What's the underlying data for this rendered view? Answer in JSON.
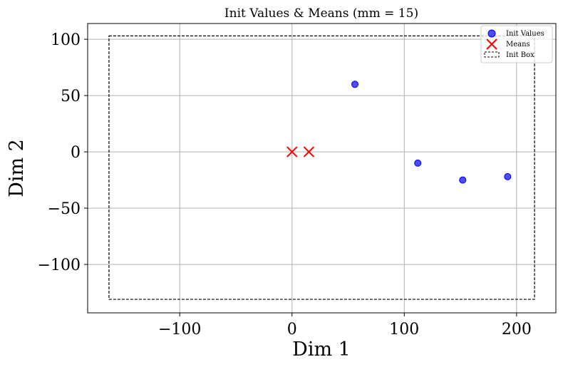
{
  "chart_data": {
    "type": "scatter",
    "title": "Init Values & Means (mm = 15)",
    "xlabel": "Dim 1",
    "ylabel": "Dim 2",
    "xlim": [
      -182,
      235
    ],
    "ylim": [
      -143,
      114
    ],
    "xticks": [
      -100,
      0,
      100,
      200
    ],
    "yticks": [
      -100,
      -50,
      0,
      50,
      100
    ],
    "xtick_labels": [
      "−100",
      "0",
      "100",
      "200"
    ],
    "ytick_labels": [
      "−100",
      "−50",
      "0",
      "50",
      "100"
    ],
    "grid": true,
    "legend_position": "top-right",
    "series": [
      {
        "name": "Init Values",
        "marker": "circle",
        "color": "#0000ff",
        "points": [
          [
            56,
            60
          ],
          [
            112,
            -10
          ],
          [
            152,
            -25
          ],
          [
            192,
            -22
          ]
        ]
      },
      {
        "name": "Means",
        "marker": "x",
        "color": "#ff0000",
        "points": [
          [
            0,
            0
          ],
          [
            15,
            0
          ]
        ]
      }
    ],
    "box": {
      "name": "Init Box",
      "style": "dashed",
      "color": "#000000",
      "x": [
        -163,
        216
      ],
      "y": [
        -131,
        103
      ]
    }
  }
}
